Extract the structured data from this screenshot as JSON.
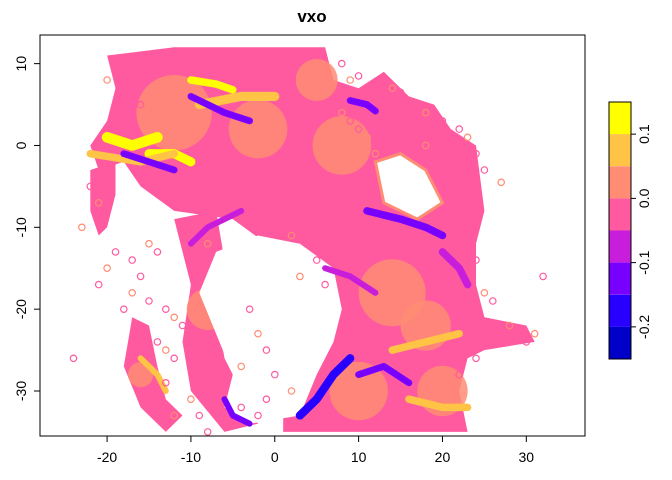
{
  "chart_data": {
    "type": "heatmap",
    "title": "vxo",
    "xlabel": "",
    "ylabel": "",
    "xlim": [
      -28,
      37
    ],
    "ylim": [
      -35.5,
      13.5
    ],
    "x_ticks": [
      -20,
      -10,
      0,
      10,
      20,
      30
    ],
    "y_ticks": [
      10,
      0,
      -10,
      -20,
      -30
    ],
    "grid": false,
    "legend": {
      "placement": "right",
      "ticks": [
        0.1,
        0.0,
        -0.1,
        -0.2
      ],
      "bins": [
        {
          "from": 0.1,
          "to": 0.15,
          "color": "#FFFF00"
        },
        {
          "from": 0.05,
          "to": 0.1,
          "color": "#FFC345"
        },
        {
          "from": 0.0,
          "to": 0.05,
          "color": "#FF8C73"
        },
        {
          "from": -0.05,
          "to": 0.0,
          "color": "#FF5AA0"
        },
        {
          "from": -0.1,
          "to": -0.05,
          "color": "#C81EDC"
        },
        {
          "from": -0.15,
          "to": -0.1,
          "color": "#7800FF"
        },
        {
          "from": -0.2,
          "to": -0.15,
          "color": "#2800FF"
        },
        {
          "from": -0.25,
          "to": -0.2,
          "color": "#0000C8"
        }
      ]
    },
    "regions": {
      "dominant_color": "#FF5AA0",
      "secondary_color": "#FF8C73",
      "outline_main": [
        [
          -20,
          11
        ],
        [
          -12,
          12
        ],
        [
          0,
          12
        ],
        [
          6,
          12
        ],
        [
          7,
          8
        ],
        [
          10,
          7
        ],
        [
          13,
          9
        ],
        [
          16,
          6
        ],
        [
          19,
          5
        ],
        [
          21,
          2
        ],
        [
          24,
          0
        ],
        [
          25,
          -8
        ],
        [
          24,
          -12
        ],
        [
          24,
          -17
        ],
        [
          25,
          -21
        ],
        [
          30,
          -22
        ],
        [
          31,
          -24
        ],
        [
          25,
          -25
        ],
        [
          23,
          -26
        ],
        [
          22,
          -30
        ],
        [
          23,
          -35
        ],
        [
          1,
          -35
        ],
        [
          1,
          -29
        ],
        [
          5,
          -24
        ],
        [
          6,
          -18
        ],
        [
          3,
          -15
        ],
        [
          -1,
          -12
        ],
        [
          -5,
          -9
        ],
        [
          -12,
          -8
        ],
        [
          -16,
          -5
        ],
        [
          -18,
          -2
        ],
        [
          -21,
          -3
        ],
        [
          -22,
          0
        ],
        [
          -20,
          3
        ],
        [
          -19,
          7
        ]
      ],
      "outline_hole": [
        [
          -7,
          -13
        ],
        [
          -2,
          -11
        ],
        [
          3,
          -12
        ],
        [
          7,
          -15
        ],
        [
          8,
          -20
        ],
        [
          7,
          -24
        ],
        [
          5,
          -28
        ],
        [
          3,
          -33
        ],
        [
          -3,
          -34
        ],
        [
          -6,
          -32
        ],
        [
          -5,
          -28
        ],
        [
          -7,
          -23
        ],
        [
          -9,
          -18
        ]
      ],
      "outline_west_strip": [
        [
          -12,
          -9
        ],
        [
          -7,
          -8
        ],
        [
          -6,
          -14
        ],
        [
          -7,
          -20
        ],
        [
          -6,
          -26
        ],
        [
          -4,
          -30
        ],
        [
          -2,
          -34
        ],
        [
          -6,
          -35
        ],
        [
          -10,
          -30
        ],
        [
          -11,
          -24
        ],
        [
          -10,
          -17
        ]
      ],
      "outline_sw_arm": [
        [
          -17,
          -21
        ],
        [
          -15,
          -22
        ],
        [
          -14,
          -27
        ],
        [
          -13,
          -31
        ],
        [
          -11,
          -33
        ],
        [
          -13,
          -35
        ],
        [
          -16,
          -32
        ],
        [
          -18,
          -27
        ]
      ],
      "outline_west_arm": [
        [
          -22,
          -3
        ],
        [
          -19,
          -2
        ],
        [
          -19,
          -6
        ],
        [
          -20,
          -10
        ],
        [
          -21,
          -11
        ],
        [
          -22,
          -8
        ]
      ],
      "outline_east_island": [
        [
          12,
          -2
        ],
        [
          15,
          -1
        ],
        [
          18,
          -3
        ],
        [
          20,
          -7
        ],
        [
          17,
          -9
        ],
        [
          13,
          -7
        ]
      ],
      "high_streaks": [
        {
          "points": [
            [
              -20,
              1
            ],
            [
              -17,
              0
            ],
            [
              -14,
              1
            ]
          ],
          "bin": 0,
          "width": 1.4
        },
        {
          "points": [
            [
              -15,
              -1
            ],
            [
              -12,
              -1
            ],
            [
              -10,
              -2
            ]
          ],
          "bin": 0,
          "width": 1.2
        },
        {
          "points": [
            [
              -10,
              8
            ],
            [
              -7,
              7.5
            ],
            [
              -5,
              6.8
            ]
          ],
          "bin": 0,
          "width": 1.0
        },
        {
          "points": [
            [
              -9,
              5
            ],
            [
              -4,
              6
            ],
            [
              0,
              6
            ]
          ],
          "bin": 1,
          "width": 1.2
        },
        {
          "points": [
            [
              14,
              -25
            ],
            [
              18,
              -24
            ],
            [
              22,
              -23
            ]
          ],
          "bin": 1,
          "width": 1.0
        },
        {
          "points": [
            [
              16,
              -31
            ],
            [
              20,
              -32
            ],
            [
              23,
              -32
            ]
          ],
          "bin": 1,
          "width": 1.0
        },
        {
          "points": [
            [
              -22,
              -1
            ],
            [
              -16,
              -2
            ],
            [
              -12,
              -1
            ]
          ],
          "bin": 1,
          "width": 1.0
        },
        {
          "points": [
            [
              -16,
              -26
            ],
            [
              -14,
              -28
            ],
            [
              -13,
              -30
            ]
          ],
          "bin": 1,
          "width": 0.8
        }
      ],
      "low_streaks": [
        {
          "points": [
            [
              -18,
              -1
            ],
            [
              -15,
              -2
            ],
            [
              -12,
              -3
            ]
          ],
          "bin": 5,
          "width": 0.9
        },
        {
          "points": [
            [
              -10,
              6
            ],
            [
              -6,
              4
            ],
            [
              -3,
              3
            ]
          ],
          "bin": 5,
          "width": 0.9
        },
        {
          "points": [
            [
              9,
              5.5
            ],
            [
              11,
              5
            ],
            [
              12,
              4.2
            ]
          ],
          "bin": 5,
          "width": 0.9
        },
        {
          "points": [
            [
              11,
              -8
            ],
            [
              15,
              -9
            ],
            [
              18,
              -10
            ],
            [
              20,
              -11
            ]
          ],
          "bin": 5,
          "width": 1.0
        },
        {
          "points": [
            [
              3,
              -33
            ],
            [
              5,
              -31
            ],
            [
              7,
              -28
            ],
            [
              9,
              -26
            ]
          ],
          "bin": 6,
          "width": 1.1
        },
        {
          "points": [
            [
              10,
              -28
            ],
            [
              13,
              -27
            ],
            [
              16,
              -29
            ]
          ],
          "bin": 5,
          "width": 0.9
        },
        {
          "points": [
            [
              -6,
              -31
            ],
            [
              -5,
              -33
            ],
            [
              -3,
              -34
            ]
          ],
          "bin": 5,
          "width": 0.8
        },
        {
          "points": [
            [
              20,
              -13
            ],
            [
              22,
              -15
            ],
            [
              23,
              -17
            ]
          ],
          "bin": 4,
          "width": 1.0
        },
        {
          "points": [
            [
              -4,
              -8
            ],
            [
              -8,
              -10
            ],
            [
              -10,
              -12
            ]
          ],
          "bin": 4,
          "width": 0.8
        },
        {
          "points": [
            [
              6,
              -15
            ],
            [
              9,
              -16
            ],
            [
              12,
              -18
            ]
          ],
          "bin": 4,
          "width": 0.8
        }
      ],
      "mid_patches": [
        {
          "center": [
            -12,
            4
          ],
          "r": 4.5
        },
        {
          "center": [
            -2,
            2
          ],
          "r": 3.5
        },
        {
          "center": [
            8,
            0
          ],
          "r": 3.5
        },
        {
          "center": [
            14,
            -18
          ],
          "r": 4.0
        },
        {
          "center": [
            18,
            -22
          ],
          "r": 3.0
        },
        {
          "center": [
            10,
            -30
          ],
          "r": 3.5
        },
        {
          "center": [
            -8,
            -20
          ],
          "r": 2.5
        },
        {
          "center": [
            20,
            -30
          ],
          "r": 3.0
        },
        {
          "center": [
            5,
            8
          ],
          "r": 2.5
        },
        {
          "center": [
            -16,
            -28
          ],
          "r": 1.5
        }
      ],
      "scatter_points": [
        [
          -23,
          -10
        ],
        [
          -24,
          -26
        ],
        [
          -22,
          -5
        ],
        [
          -21,
          -7
        ],
        [
          -19,
          -13
        ],
        [
          -17,
          -14
        ],
        [
          -15,
          -12
        ],
        [
          -14,
          -13
        ],
        [
          -16,
          -16
        ],
        [
          -17,
          -18
        ],
        [
          -15,
          -19
        ],
        [
          -13,
          -20
        ],
        [
          -12,
          -21
        ],
        [
          -11,
          -22
        ],
        [
          -14,
          -24
        ],
        [
          -13,
          -25
        ],
        [
          -12,
          -26
        ],
        [
          -13,
          -29
        ],
        [
          -12,
          -33
        ],
        [
          -9,
          -25
        ],
        [
          -8,
          -28
        ],
        [
          -10,
          -31
        ],
        [
          -9,
          -33
        ],
        [
          -8,
          -35
        ],
        [
          -4,
          -27
        ],
        [
          -4,
          -32
        ],
        [
          8,
          10
        ],
        [
          9,
          8
        ],
        [
          10,
          8.5
        ],
        [
          13,
          8
        ],
        [
          14,
          7
        ],
        [
          15,
          6.5
        ],
        [
          16,
          4.5
        ],
        [
          18,
          4
        ],
        [
          20,
          3
        ],
        [
          22,
          2
        ],
        [
          23,
          1
        ],
        [
          24,
          -1
        ],
        [
          25,
          -3
        ],
        [
          27,
          -4.5
        ],
        [
          32,
          -16
        ],
        [
          26,
          -22
        ],
        [
          28,
          -22
        ],
        [
          29,
          -23
        ],
        [
          30,
          -24
        ],
        [
          31,
          -23
        ],
        [
          24,
          -26
        ],
        [
          22,
          -28
        ],
        [
          8,
          4
        ],
        [
          9,
          3
        ],
        [
          10,
          2
        ],
        [
          11,
          1
        ],
        [
          -16,
          5
        ],
        [
          -18,
          6
        ],
        [
          -20,
          8
        ],
        [
          -19,
          10
        ],
        [
          -7,
          -11
        ],
        [
          -8,
          -12
        ],
        [
          -9,
          -13
        ],
        [
          -4,
          -9
        ],
        [
          2,
          -11
        ],
        [
          4,
          -12
        ],
        [
          5,
          -14
        ],
        [
          3,
          -16
        ],
        [
          6,
          -17
        ],
        [
          17,
          2
        ],
        [
          18,
          0
        ],
        [
          19,
          -2
        ],
        [
          21,
          -4
        ],
        [
          12,
          -1
        ],
        [
          14,
          0
        ],
        [
          -3,
          -20
        ],
        [
          -2,
          -23
        ],
        [
          -1,
          -25
        ],
        [
          0,
          -28
        ],
        [
          2,
          -30
        ],
        [
          -1,
          -31
        ],
        [
          -2,
          -33
        ],
        [
          25,
          -18
        ],
        [
          26,
          -19
        ],
        [
          24,
          -14
        ],
        [
          -20,
          -15
        ],
        [
          -21,
          -17
        ],
        [
          -18,
          -20
        ]
      ]
    }
  }
}
